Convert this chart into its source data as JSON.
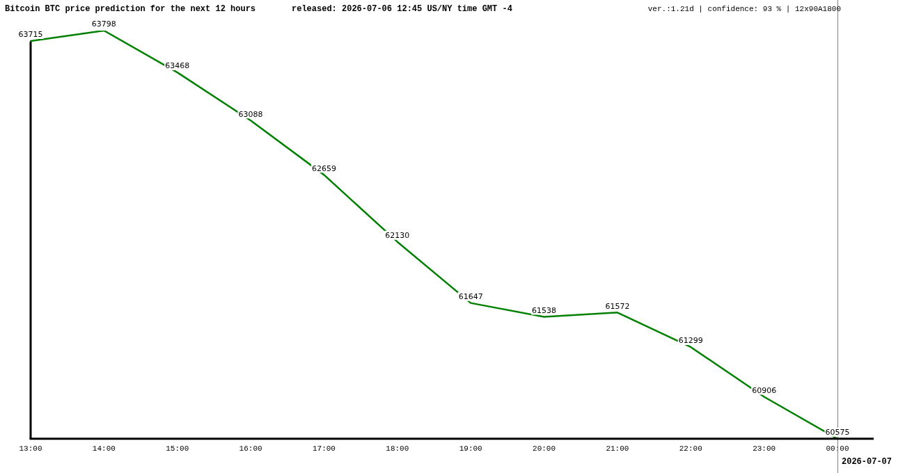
{
  "chart_data": {
    "type": "line",
    "title": "Bitcoin BTC price prediction for the next 12 hours",
    "subtitle": "released: 2026-07-06 12:45 US/NY time GMT -4",
    "annotations": [
      "ver.:1.21d | confidence: 93 % | 12x90A1800"
    ],
    "categories": [
      "13:00",
      "14:00",
      "15:00",
      "16:00",
      "17:00",
      "18:00",
      "19:00",
      "20:00",
      "21:00",
      "22:00",
      "23:00",
      "00:00"
    ],
    "series": [
      {
        "color": "#008000",
        "values": [
          63715,
          63798,
          63468,
          63088,
          62659,
          62130,
          61647,
          61538,
          61572,
          61299,
          60906,
          60575
        ]
      }
    ],
    "tick_labels": "x",
    "data_labels": true,
    "grid": false,
    "legend": false,
    "marker": "none",
    "line_style": "solid",
    "ref_lines": [
      {
        "axis": "x",
        "value": "00:00",
        "label": "2026-07-07",
        "color": "#808080"
      }
    ]
  }
}
